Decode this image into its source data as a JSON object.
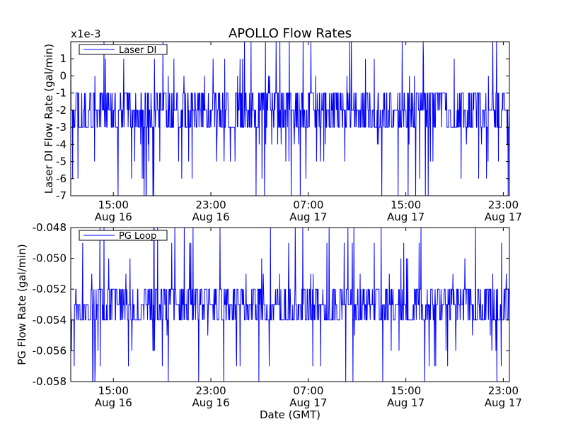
{
  "title": "APOLLO Flow Rates",
  "xlabel": "Date (GMT)",
  "colors": {
    "series": "#0000ff",
    "frame": "#000000",
    "background": "#ffffff"
  },
  "chart_data": [
    {
      "type": "line",
      "ylabel": "Laser DI Flow Rate (gal/min)",
      "offset_label": "x1e-3",
      "legend": {
        "label": "Laser DI",
        "placement": "top-left"
      },
      "x_ticks": [
        {
          "time": "15:00",
          "date": "Aug 16",
          "hours": 15
        },
        {
          "time": "23:00",
          "date": "Aug 16",
          "hours": 23
        },
        {
          "time": "07:00",
          "date": "Aug 17",
          "hours": 31
        },
        {
          "time": "15:00",
          "date": "Aug 17",
          "hours": 39
        },
        {
          "time": "23:00",
          "date": "Aug 17",
          "hours": 47
        }
      ],
      "xlim_hours": [
        11.5,
        47.5
      ],
      "ylim": [
        -7,
        2
      ],
      "y_ticks": [
        {
          "label": "1",
          "value": 1
        },
        {
          "label": "0",
          "value": 0
        },
        {
          "label": "-1",
          "value": -1
        },
        {
          "label": "-2",
          "value": -2
        },
        {
          "label": "-3",
          "value": -3
        },
        {
          "label": "-4",
          "value": -4
        },
        {
          "label": "-5",
          "value": -5
        },
        {
          "label": "-6",
          "value": -6
        },
        {
          "label": "-7",
          "value": -7
        }
      ],
      "series": [
        {
          "name": "Laser DI",
          "color": "#0000ff",
          "baseline_levels": [
            -1,
            -2,
            -3
          ],
          "spike_levels": [
            2,
            1,
            0,
            -4,
            -5,
            -6,
            -7
          ]
        }
      ]
    },
    {
      "type": "line",
      "ylabel": "PG Flow Rate (gal/min)",
      "legend": {
        "label": "PG Loop",
        "placement": "top-left"
      },
      "x_ticks": [
        {
          "time": "15:00",
          "date": "Aug 16",
          "hours": 15
        },
        {
          "time": "23:00",
          "date": "Aug 16",
          "hours": 23
        },
        {
          "time": "07:00",
          "date": "Aug 17",
          "hours": 31
        },
        {
          "time": "15:00",
          "date": "Aug 17",
          "hours": 39
        },
        {
          "time": "23:00",
          "date": "Aug 17",
          "hours": 47
        }
      ],
      "xlim_hours": [
        11.5,
        47.5
      ],
      "ylim": [
        -0.058,
        -0.048
      ],
      "y_ticks": [
        {
          "label": "-0.048",
          "value": -0.048
        },
        {
          "label": "-0.050",
          "value": -0.05
        },
        {
          "label": "-0.052",
          "value": -0.052
        },
        {
          "label": "-0.054",
          "value": -0.054
        },
        {
          "label": "-0.056",
          "value": -0.056
        },
        {
          "label": "-0.058",
          "value": -0.058
        }
      ],
      "series": [
        {
          "name": "PG Loop",
          "color": "#0000ff",
          "baseline_levels": [
            -0.052,
            -0.053,
            -0.054
          ],
          "spike_levels": [
            -0.048,
            -0.049,
            -0.05,
            -0.051,
            -0.055,
            -0.056,
            -0.057,
            -0.058
          ]
        }
      ]
    }
  ]
}
